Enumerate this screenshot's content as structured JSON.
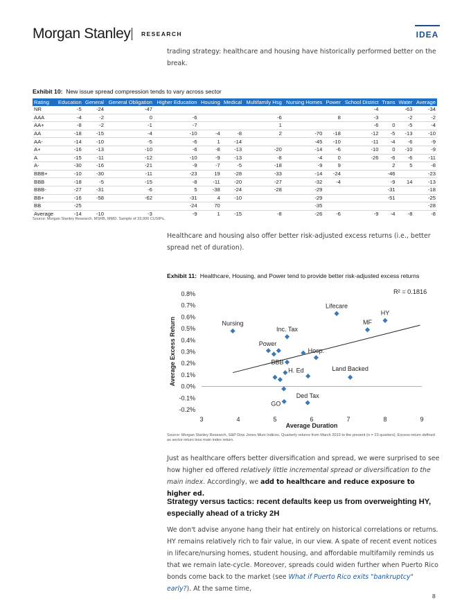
{
  "header": {
    "logo": "Morgan Stanley",
    "section": "RESEARCH",
    "badge": "IDEA"
  },
  "intro_text": "trading strategy: healthcare and housing have historically performed better on the break.",
  "exhibit10": {
    "title_num": "Exhibit 10:",
    "title_text": "New issue spread compression tends to vary across sector",
    "columns": [
      "Rating",
      "Education",
      "General",
      "General Obligation",
      "Higher Education",
      "Housing",
      "Medical",
      "Multifamily Hsg",
      "Nursing Homes",
      "Power",
      "School District",
      "Trans",
      "Water",
      "Average"
    ],
    "rows": [
      [
        "NR",
        "-5",
        "-24",
        "-47",
        "",
        "",
        "",
        "",
        "",
        "",
        "-4",
        "",
        "-63",
        "-34"
      ],
      [
        "AAA",
        "-4",
        "-2",
        "0",
        "-6",
        "",
        "",
        "-6",
        "",
        "8",
        "-3",
        "",
        "-2",
        "-2"
      ],
      [
        "AA+",
        "-8",
        "-2",
        "-1",
        "-7",
        "",
        "",
        "1",
        "",
        "",
        "-6",
        "0",
        "-5",
        "-4"
      ],
      [
        "AA",
        "-18",
        "-15",
        "-4",
        "-10",
        "-4",
        "-8",
        "2",
        "-70",
        "-18",
        "-12",
        "-5",
        "-13",
        "-10"
      ],
      [
        "AA-",
        "-14",
        "-10",
        "-5",
        "-6",
        "1",
        "-14",
        "",
        "-45",
        "-10",
        "-11",
        "-4",
        "-6",
        "-9"
      ],
      [
        "A+",
        "-16",
        "-13",
        "-10",
        "-6",
        "-8",
        "-13",
        "-20",
        "-14",
        "-6",
        "-10",
        "0",
        "-10",
        "-9"
      ],
      [
        "A",
        "-15",
        "-11",
        "-12",
        "-10",
        "-9",
        "-13",
        "-8",
        "-4",
        "0",
        "-26",
        "-6",
        "-6",
        "-11"
      ],
      [
        "A-",
        "-30",
        "-16",
        "-21",
        "-9",
        "-7",
        "-5",
        "-18",
        "-9",
        "9",
        "",
        "2",
        "5",
        "-8"
      ],
      [
        "BBB+",
        "-10",
        "-30",
        "-11",
        "-23",
        "19",
        "-28",
        "-33",
        "-14",
        "-24",
        "",
        "-46",
        "",
        "-23"
      ],
      [
        "BBB",
        "-18",
        "-5",
        "-15",
        "-8",
        "-11",
        "-20",
        "-27",
        "-32",
        "-4",
        "",
        "-9",
        "14",
        "-13"
      ],
      [
        "BBB-",
        "-27",
        "-31",
        "-6",
        "5",
        "-38",
        "-24",
        "-28",
        "-29",
        "",
        "",
        "-31",
        "",
        "-18"
      ],
      [
        "BB+",
        "-16",
        "-58",
        "-62",
        "-31",
        "4",
        "-10",
        "",
        "-29",
        "",
        "",
        "-51",
        "",
        "-25"
      ],
      [
        "BB",
        "-25",
        "",
        "",
        "-24",
        "70",
        "",
        "",
        "-35",
        "",
        "",
        "",
        "",
        "-28"
      ]
    ],
    "average": [
      "Average",
      "-14",
      "-10",
      "-3",
      "-9",
      "1",
      "-15",
      "-8",
      "-26",
      "-6",
      "-9",
      "-4",
      "-8",
      "-8"
    ],
    "source": "Source: Morgan Stanley Research, MSRB, MMD. Sample of 33,000 CUSIPs."
  },
  "para2": "Healthcare and housing also offer better risk-adjusted excess returns (i.e., better spread net of duration).",
  "exhibit11": {
    "title_num": "Exhibit 11:",
    "title_text": "Healthcare, Housing, and Power tend to provide better risk-adjusted excess returns",
    "source": "Source: Morgan Stanley Research, S&P Dow Jones Muni Indices. Quarterly returns from March 2013 to the present (n = 23 quarters). Excess return defined as sector return less main index return."
  },
  "chart_data": {
    "type": "scatter",
    "title": "",
    "xlabel": "Average Duration",
    "ylabel": "Average Excess Return",
    "xlim": [
      3,
      9
    ],
    "ylim": [
      -0.2,
      0.8
    ],
    "xticks": [
      "3",
      "4",
      "5",
      "6",
      "7",
      "8",
      "9"
    ],
    "yticks": [
      "-0.2%",
      "-0.1%",
      "0.0%",
      "0.1%",
      "0.2%",
      "0.3%",
      "0.4%",
      "0.5%",
      "0.6%",
      "0.7%",
      "0.8%"
    ],
    "r2_label": "R² = 0.1816",
    "trendline": [
      [
        3.85,
        0.12
      ],
      [
        8.95,
        0.53
      ]
    ],
    "marker_color": "#3c78b4",
    "points": [
      {
        "x": 3.85,
        "y": 0.48,
        "label": "Nursing"
      },
      {
        "x": 4.82,
        "y": 0.31,
        "label": ""
      },
      {
        "x": 4.97,
        "y": 0.28,
        "label": ""
      },
      {
        "x": 5.1,
        "y": 0.31,
        "label": "Power"
      },
      {
        "x": 5.33,
        "y": 0.43,
        "label": "Inc. Tax"
      },
      {
        "x": 5.33,
        "y": 0.21,
        "label": "BBB"
      },
      {
        "x": 5.77,
        "y": 0.29,
        "label": ""
      },
      {
        "x": 6.12,
        "y": 0.25,
        "label": "Hosp."
      },
      {
        "x": 5.9,
        "y": 0.09,
        "label": "H. Ed"
      },
      {
        "x": 5.28,
        "y": 0.12,
        "label": ""
      },
      {
        "x": 5.0,
        "y": 0.08,
        "label": ""
      },
      {
        "x": 5.14,
        "y": 0.06,
        "label": ""
      },
      {
        "x": 5.24,
        "y": -0.02,
        "label": ""
      },
      {
        "x": 5.25,
        "y": -0.13,
        "label": "GO"
      },
      {
        "x": 5.89,
        "y": -0.14,
        "label": "Ded Tax"
      },
      {
        "x": 6.68,
        "y": 0.63,
        "label": "Lifecare"
      },
      {
        "x": 7.05,
        "y": 0.08,
        "label": "Land Backed"
      },
      {
        "x": 7.52,
        "y": 0.49,
        "label": "MF"
      },
      {
        "x": 8.0,
        "y": 0.57,
        "label": "HY"
      }
    ]
  },
  "para3": {
    "a": "Just as healthcare offers better diversification and spread, we were surprised to see how higher ed offered ",
    "b": "relatively little incremental spread or diversification to the main index",
    "c": ". Accordingly, we ",
    "d": "add to healthcare and reduce exposure to higher ed."
  },
  "heading": "Strategy versus tactics: recent defaults keep us from overweighting HY, especially ahead of a tricky 2H",
  "para4": {
    "a": "We don't advise anyone hang their hat entirely on historical correlations or returns. HY remains relatively rich to fair value, in our view. A spate of recent event notices in lifecare/nursing homes, student housing, and affordable multifamily reminds us that we remain late-cycle. Moreover, spreads could widen further when Puerto Rico bonds come back to the market (see ",
    "link": "What if Puerto Rico exits \"bankruptcy\" early?",
    "b": "). At the same time,"
  },
  "page_number": "8"
}
